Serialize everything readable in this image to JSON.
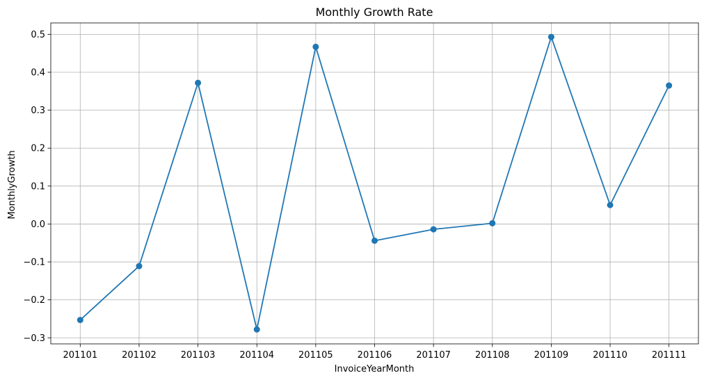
{
  "chart_data": {
    "type": "line",
    "title": "Monthly Growth Rate",
    "xlabel": "InvoiceYearMonth",
    "ylabel": "MonthlyGrowth",
    "categories": [
      "201101",
      "201102",
      "201103",
      "201104",
      "201105",
      "201106",
      "201107",
      "201108",
      "201109",
      "201110",
      "201111"
    ],
    "series": [
      {
        "values": [
          -0.253,
          -0.111,
          0.372,
          -0.278,
          0.467,
          -0.044,
          -0.014,
          0.002,
          0.493,
          0.05,
          0.365
        ],
        "color": "#1f77b4",
        "marker": "circle"
      }
    ],
    "ylim": [
      -0.316,
      0.53
    ],
    "yticks": [
      -0.3,
      -0.2,
      -0.1,
      0.0,
      0.1,
      0.2,
      0.3,
      0.4,
      0.5
    ],
    "ytick_labels": [
      "−0.3",
      "−0.2",
      "−0.1",
      "0.0",
      "0.1",
      "0.2",
      "0.3",
      "0.4",
      "0.5"
    ],
    "grid": true,
    "grid_color": "#b0b0b0"
  }
}
